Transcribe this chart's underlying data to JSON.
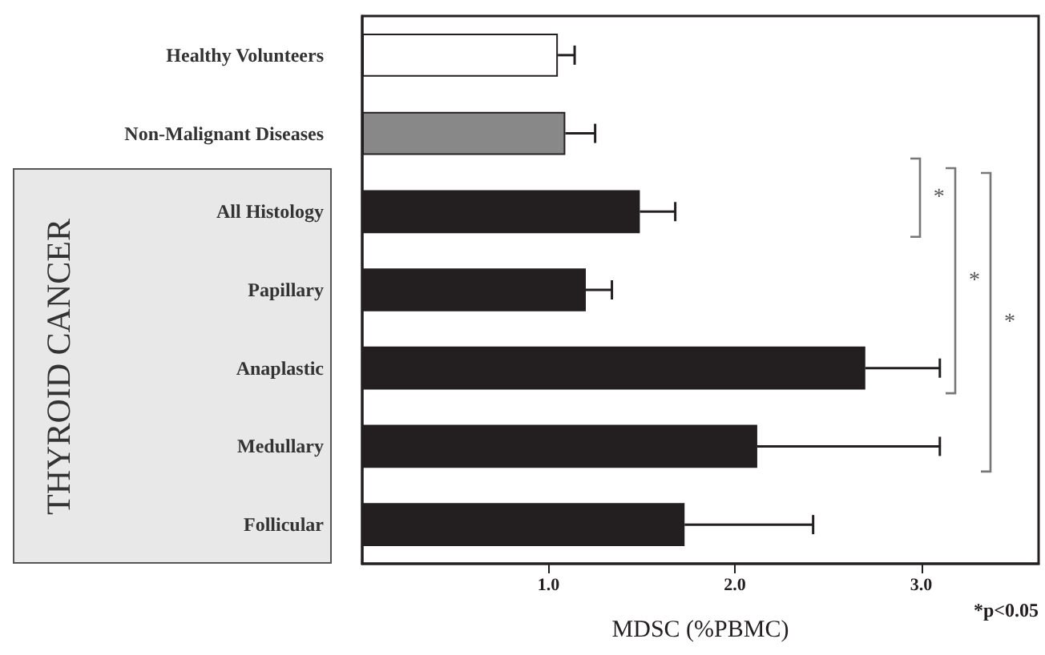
{
  "chart_data": {
    "type": "bar",
    "orientation": "horizontal",
    "xlabel": "MDSC (%PBMC)",
    "categories": [
      "Healthy Volunteers",
      "Non-Malignant Diseases",
      "All Histology",
      "Papillary",
      "Anaplastic",
      "Medullary",
      "Follicular"
    ],
    "values": [
      1.05,
      1.09,
      1.49,
      1.2,
      2.7,
      2.12,
      1.73
    ],
    "colors": [
      "#ffffff",
      "#888888",
      "#231f20",
      "#231f20",
      "#231f20",
      "#231f20",
      "#231f20"
    ],
    "errors": [
      [
        1.05,
        1.14
      ],
      [
        1.09,
        1.25
      ],
      [
        1.49,
        1.68
      ],
      [
        1.2,
        1.34
      ],
      [
        2.7,
        3.1
      ],
      [
        2.12,
        3.1
      ],
      [
        1.73,
        2.42
      ]
    ],
    "xlim": [
      0,
      3.63
    ],
    "xticks": [
      {
        "value": 1,
        "label": "1.0"
      },
      {
        "value": 2,
        "label": "2.0"
      },
      {
        "value": 3,
        "label": "3.0"
      }
    ],
    "grid": false,
    "annotations": [
      "THYROID CANCER",
      "*",
      "*",
      "*",
      "*p<0.05"
    ]
  }
}
